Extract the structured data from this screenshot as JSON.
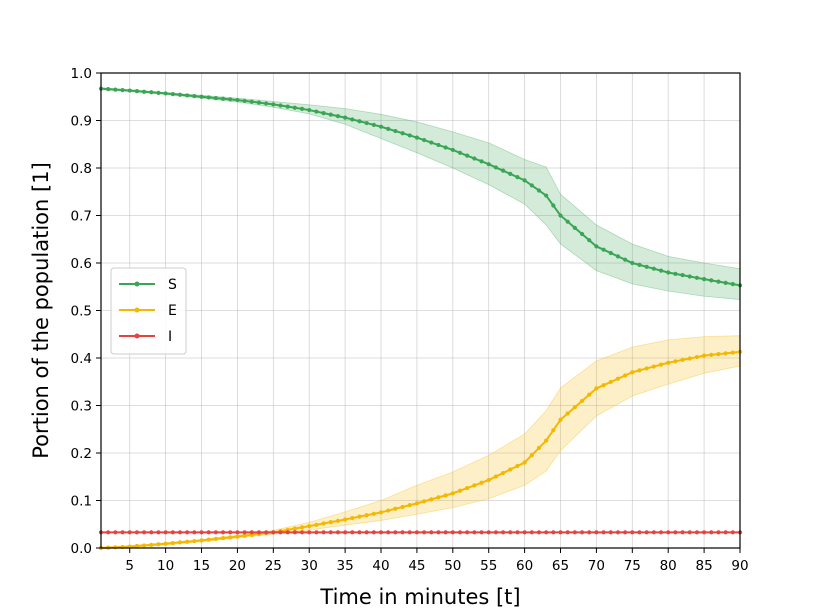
{
  "chart_data": {
    "type": "line",
    "title": "",
    "xlabel": "Time in minutes [t]",
    "ylabel": "Portion of the population [1]",
    "xlim": [
      1,
      90
    ],
    "ylim": [
      0.0,
      1.0
    ],
    "xticks": [
      5,
      10,
      15,
      20,
      25,
      30,
      35,
      40,
      45,
      50,
      55,
      60,
      65,
      70,
      75,
      80,
      85,
      90
    ],
    "yticks": [
      0.0,
      0.1,
      0.2,
      0.3,
      0.4,
      0.5,
      0.6,
      0.7,
      0.8,
      0.9,
      1.0
    ],
    "ytick_labels": [
      "0.0",
      "0.1",
      "0.2",
      "0.3",
      "0.4",
      "0.5",
      "0.6",
      "0.7",
      "0.8",
      "0.9",
      "1.0"
    ],
    "grid": true,
    "legend_position": "center-left",
    "series": [
      {
        "name": "S",
        "color": "#3aa655",
        "points": [
          [
            1,
            0.967
          ],
          [
            5,
            0.963
          ],
          [
            10,
            0.957
          ],
          [
            15,
            0.95
          ],
          [
            20,
            0.943
          ],
          [
            25,
            0.934
          ],
          [
            30,
            0.922
          ],
          [
            35,
            0.906
          ],
          [
            40,
            0.887
          ],
          [
            45,
            0.864
          ],
          [
            50,
            0.838
          ],
          [
            55,
            0.808
          ],
          [
            60,
            0.774
          ],
          [
            63,
            0.742
          ],
          [
            65,
            0.7
          ],
          [
            70,
            0.635
          ],
          [
            75,
            0.6
          ],
          [
            80,
            0.58
          ],
          [
            85,
            0.566
          ],
          [
            90,
            0.553
          ]
        ],
        "band": {
          "upper": [
            [
              1,
              0.969
            ],
            [
              5,
              0.965
            ],
            [
              10,
              0.959
            ],
            [
              15,
              0.953
            ],
            [
              20,
              0.947
            ],
            [
              25,
              0.94
            ],
            [
              30,
              0.933
            ],
            [
              35,
              0.925
            ],
            [
              40,
              0.913
            ],
            [
              45,
              0.897
            ],
            [
              50,
              0.876
            ],
            [
              55,
              0.853
            ],
            [
              60,
              0.818
            ],
            [
              63,
              0.802
            ],
            [
              65,
              0.745
            ],
            [
              70,
              0.68
            ],
            [
              75,
              0.64
            ],
            [
              80,
              0.614
            ],
            [
              85,
              0.6
            ],
            [
              90,
              0.588
            ]
          ],
          "lower": [
            [
              1,
              0.965
            ],
            [
              5,
              0.961
            ],
            [
              10,
              0.955
            ],
            [
              15,
              0.947
            ],
            [
              20,
              0.939
            ],
            [
              25,
              0.928
            ],
            [
              30,
              0.914
            ],
            [
              35,
              0.892
            ],
            [
              40,
              0.862
            ],
            [
              45,
              0.832
            ],
            [
              50,
              0.8
            ],
            [
              55,
              0.765
            ],
            [
              60,
              0.724
            ],
            [
              63,
              0.68
            ],
            [
              65,
              0.64
            ],
            [
              70,
              0.584
            ],
            [
              75,
              0.556
            ],
            [
              80,
              0.541
            ],
            [
              85,
              0.53
            ],
            [
              90,
              0.523
            ]
          ]
        }
      },
      {
        "name": "E",
        "color": "#f5b800",
        "points": [
          [
            1,
            0.0
          ],
          [
            5,
            0.003
          ],
          [
            10,
            0.009
          ],
          [
            15,
            0.016
          ],
          [
            20,
            0.024
          ],
          [
            25,
            0.033
          ],
          [
            30,
            0.046
          ],
          [
            35,
            0.06
          ],
          [
            40,
            0.075
          ],
          [
            45,
            0.094
          ],
          [
            50,
            0.115
          ],
          [
            55,
            0.143
          ],
          [
            60,
            0.18
          ],
          [
            63,
            0.226
          ],
          [
            65,
            0.27
          ],
          [
            70,
            0.336
          ],
          [
            75,
            0.37
          ],
          [
            80,
            0.39
          ],
          [
            85,
            0.405
          ],
          [
            90,
            0.413
          ]
        ],
        "band": {
          "upper": [
            [
              1,
              0.0
            ],
            [
              5,
              0.005
            ],
            [
              10,
              0.011
            ],
            [
              15,
              0.018
            ],
            [
              20,
              0.027
            ],
            [
              25,
              0.037
            ],
            [
              30,
              0.054
            ],
            [
              35,
              0.076
            ],
            [
              40,
              0.1
            ],
            [
              45,
              0.132
            ],
            [
              50,
              0.16
            ],
            [
              55,
              0.195
            ],
            [
              60,
              0.24
            ],
            [
              63,
              0.289
            ],
            [
              65,
              0.337
            ],
            [
              70,
              0.394
            ],
            [
              75,
              0.423
            ],
            [
              80,
              0.438
            ],
            [
              85,
              0.445
            ],
            [
              90,
              0.447
            ]
          ],
          "lower": [
            [
              1,
              0.0
            ],
            [
              5,
              0.001
            ],
            [
              10,
              0.006
            ],
            [
              15,
              0.013
            ],
            [
              20,
              0.021
            ],
            [
              25,
              0.029
            ],
            [
              30,
              0.038
            ],
            [
              35,
              0.048
            ],
            [
              40,
              0.058
            ],
            [
              45,
              0.071
            ],
            [
              50,
              0.085
            ],
            [
              55,
              0.104
            ],
            [
              60,
              0.132
            ],
            [
              63,
              0.162
            ],
            [
              65,
              0.205
            ],
            [
              70,
              0.278
            ],
            [
              75,
              0.32
            ],
            [
              80,
              0.345
            ],
            [
              85,
              0.368
            ],
            [
              90,
              0.383
            ]
          ]
        }
      },
      {
        "name": "I",
        "color": "#e4433f",
        "points": [
          [
            1,
            0.033
          ],
          [
            90,
            0.033
          ]
        ]
      }
    ]
  }
}
